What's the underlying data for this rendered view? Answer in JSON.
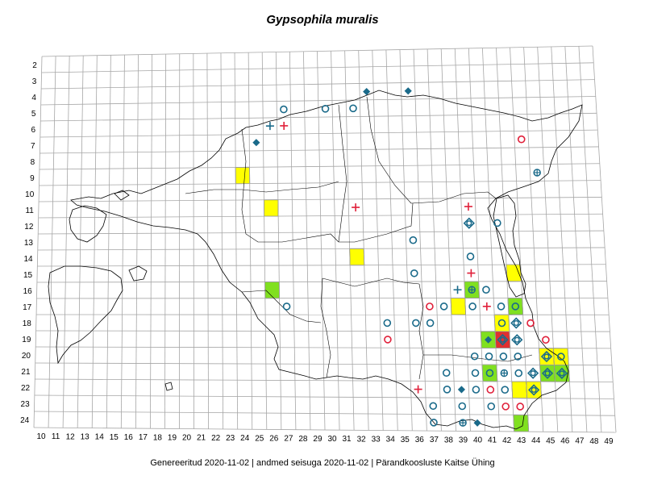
{
  "title": "Gypsophila muralis",
  "footer": "Genereeritud 2020-11-02  |  andmed seisuga 2020-11-02  |  Pärandkoosluste Kaitse Ühing",
  "grid": {
    "x_labels": [
      "10",
      "11",
      "12",
      "13",
      "14",
      "15",
      "16",
      "17",
      "18",
      "19",
      "20",
      "21",
      "22",
      "23",
      "24",
      "25",
      "26",
      "27",
      "28",
      "29",
      "30",
      "31",
      "32",
      "33",
      "34",
      "35",
      "36",
      "37",
      "38",
      "39",
      "40",
      "41",
      "42",
      "43",
      "44",
      "45",
      "46",
      "47",
      "48",
      "49"
    ],
    "y_labels": [
      "2",
      "3",
      "4",
      "5",
      "6",
      "7",
      "8",
      "9",
      "10",
      "11",
      "12",
      "13",
      "14",
      "15",
      "16",
      "17",
      "18",
      "19",
      "20",
      "21",
      "22",
      "23",
      "24"
    ]
  },
  "colors": {
    "grid_line": "#a6a6a6",
    "outline": "#000000",
    "yellow_cell": "#ffff00",
    "green_cell": "#80e020",
    "red_cell": "#e03030",
    "blue_symbol": "#1a6a8a",
    "red_symbol": "#e0203a"
  },
  "cells": [
    {
      "x": 24,
      "y": 9,
      "fill": "yellow"
    },
    {
      "x": 26,
      "y": 11,
      "fill": "yellow"
    },
    {
      "x": 32,
      "y": 14,
      "fill": "yellow"
    },
    {
      "x": 43,
      "y": 15,
      "fill": "yellow"
    },
    {
      "x": 26,
      "y": 16,
      "fill": "green"
    },
    {
      "x": 39,
      "y": 17,
      "fill": "yellow"
    },
    {
      "x": 40,
      "y": 16,
      "fill": "green"
    },
    {
      "x": 43,
      "y": 17,
      "fill": "green"
    },
    {
      "x": 42,
      "y": 18,
      "fill": "yellow"
    },
    {
      "x": 42,
      "y": 19,
      "fill": "red"
    },
    {
      "x": 41,
      "y": 19,
      "fill": "green"
    },
    {
      "x": 45,
      "y": 20,
      "fill": "yellow"
    },
    {
      "x": 46,
      "y": 20,
      "fill": "yellow"
    },
    {
      "x": 45,
      "y": 21,
      "fill": "green"
    },
    {
      "x": 46,
      "y": 21,
      "fill": "green"
    },
    {
      "x": 41,
      "y": 21,
      "fill": "green"
    },
    {
      "x": 43,
      "y": 22,
      "fill": "yellow"
    },
    {
      "x": 44,
      "y": 22,
      "fill": "yellow"
    },
    {
      "x": 43,
      "y": 24,
      "fill": "green"
    }
  ],
  "symbols": [
    {
      "x": 33,
      "y": 4,
      "type": "diamond",
      "color": "blue"
    },
    {
      "x": 36,
      "y": 4,
      "type": "diamond",
      "color": "blue"
    },
    {
      "x": 27,
      "y": 5,
      "type": "circle",
      "color": "blue"
    },
    {
      "x": 30,
      "y": 5,
      "type": "circle",
      "color": "blue"
    },
    {
      "x": 32,
      "y": 5,
      "type": "circle",
      "color": "blue"
    },
    {
      "x": 26,
      "y": 6,
      "type": "plus",
      "color": "blue"
    },
    {
      "x": 27,
      "y": 6,
      "type": "plus",
      "color": "red"
    },
    {
      "x": 25,
      "y": 7,
      "type": "diamond",
      "color": "blue"
    },
    {
      "x": 44,
      "y": 7,
      "type": "circle",
      "color": "red"
    },
    {
      "x": 45,
      "y": 9,
      "type": "circle-plus",
      "color": "blue"
    },
    {
      "x": 32,
      "y": 11,
      "type": "plus",
      "color": "red"
    },
    {
      "x": 40,
      "y": 11,
      "type": "plus",
      "color": "red"
    },
    {
      "x": 40,
      "y": 12,
      "type": "diamond-ring",
      "color": "blue"
    },
    {
      "x": 42,
      "y": 12,
      "type": "circle",
      "color": "blue"
    },
    {
      "x": 36,
      "y": 13,
      "type": "circle",
      "color": "blue"
    },
    {
      "x": 40,
      "y": 14,
      "type": "circle",
      "color": "blue"
    },
    {
      "x": 36,
      "y": 15,
      "type": "circle",
      "color": "blue"
    },
    {
      "x": 40,
      "y": 15,
      "type": "plus",
      "color": "red"
    },
    {
      "x": 39,
      "y": 16,
      "type": "plus",
      "color": "blue"
    },
    {
      "x": 40,
      "y": 16,
      "type": "circle-plus",
      "color": "blue"
    },
    {
      "x": 41,
      "y": 16,
      "type": "circle",
      "color": "blue"
    },
    {
      "x": 27,
      "y": 17,
      "type": "circle",
      "color": "blue"
    },
    {
      "x": 37,
      "y": 17,
      "type": "circle",
      "color": "red"
    },
    {
      "x": 38,
      "y": 17,
      "type": "circle",
      "color": "blue"
    },
    {
      "x": 40,
      "y": 17,
      "type": "circle",
      "color": "blue"
    },
    {
      "x": 41,
      "y": 17,
      "type": "plus",
      "color": "red"
    },
    {
      "x": 42,
      "y": 17,
      "type": "circle",
      "color": "blue"
    },
    {
      "x": 43,
      "y": 17,
      "type": "circle",
      "color": "blue"
    },
    {
      "x": 34,
      "y": 18,
      "type": "circle",
      "color": "blue"
    },
    {
      "x": 36,
      "y": 18,
      "type": "circle",
      "color": "blue"
    },
    {
      "x": 37,
      "y": 18,
      "type": "circle",
      "color": "blue"
    },
    {
      "x": 42,
      "y": 18,
      "type": "circle",
      "color": "blue"
    },
    {
      "x": 43,
      "y": 18,
      "type": "diamond-ring",
      "color": "blue"
    },
    {
      "x": 44,
      "y": 18,
      "type": "circle",
      "color": "red"
    },
    {
      "x": 34,
      "y": 19,
      "type": "circle",
      "color": "red"
    },
    {
      "x": 41,
      "y": 19,
      "type": "diamond",
      "color": "blue"
    },
    {
      "x": 42,
      "y": 19,
      "type": "diamond-ring",
      "color": "blue"
    },
    {
      "x": 43,
      "y": 19,
      "type": "diamond-ring",
      "color": "blue"
    },
    {
      "x": 45,
      "y": 19,
      "type": "circle",
      "color": "red"
    },
    {
      "x": 40,
      "y": 20,
      "type": "circle",
      "color": "blue"
    },
    {
      "x": 41,
      "y": 20,
      "type": "circle",
      "color": "blue"
    },
    {
      "x": 42,
      "y": 20,
      "type": "circle",
      "color": "blue"
    },
    {
      "x": 43,
      "y": 20,
      "type": "circle",
      "color": "blue"
    },
    {
      "x": 45,
      "y": 20,
      "type": "diamond-ring",
      "color": "blue"
    },
    {
      "x": 46,
      "y": 20,
      "type": "circle",
      "color": "blue"
    },
    {
      "x": 38,
      "y": 21,
      "type": "circle",
      "color": "blue"
    },
    {
      "x": 40,
      "y": 21,
      "type": "circle",
      "color": "blue"
    },
    {
      "x": 41,
      "y": 21,
      "type": "circle",
      "color": "blue"
    },
    {
      "x": 42,
      "y": 21,
      "type": "circle-plus",
      "color": "blue"
    },
    {
      "x": 43,
      "y": 21,
      "type": "circle",
      "color": "blue"
    },
    {
      "x": 44,
      "y": 21,
      "type": "diamond-ring",
      "color": "blue"
    },
    {
      "x": 45,
      "y": 21,
      "type": "diamond-ring",
      "color": "blue"
    },
    {
      "x": 46,
      "y": 21,
      "type": "diamond-ring",
      "color": "blue"
    },
    {
      "x": 38,
      "y": 22,
      "type": "circle",
      "color": "blue"
    },
    {
      "x": 39,
      "y": 22,
      "type": "diamond",
      "color": "blue"
    },
    {
      "x": 40,
      "y": 22,
      "type": "circle",
      "color": "blue"
    },
    {
      "x": 41,
      "y": 22,
      "type": "circle",
      "color": "red"
    },
    {
      "x": 42,
      "y": 22,
      "type": "circle",
      "color": "blue"
    },
    {
      "x": 44,
      "y": 22,
      "type": "diamond-ring",
      "color": "blue"
    },
    {
      "x": 36,
      "y": 22,
      "type": "plus",
      "color": "red"
    },
    {
      "x": 37,
      "y": 23,
      "type": "circle",
      "color": "blue"
    },
    {
      "x": 39,
      "y": 23,
      "type": "circle",
      "color": "blue"
    },
    {
      "x": 41,
      "y": 23,
      "type": "circle",
      "color": "blue"
    },
    {
      "x": 42,
      "y": 23,
      "type": "circle",
      "color": "red"
    },
    {
      "x": 43,
      "y": 23,
      "type": "circle",
      "color": "red"
    },
    {
      "x": 37,
      "y": 24,
      "type": "circle",
      "color": "blue"
    },
    {
      "x": 39,
      "y": 24,
      "type": "circle-plus",
      "color": "blue"
    },
    {
      "x": 40,
      "y": 24,
      "type": "diamond",
      "color": "blue"
    }
  ]
}
